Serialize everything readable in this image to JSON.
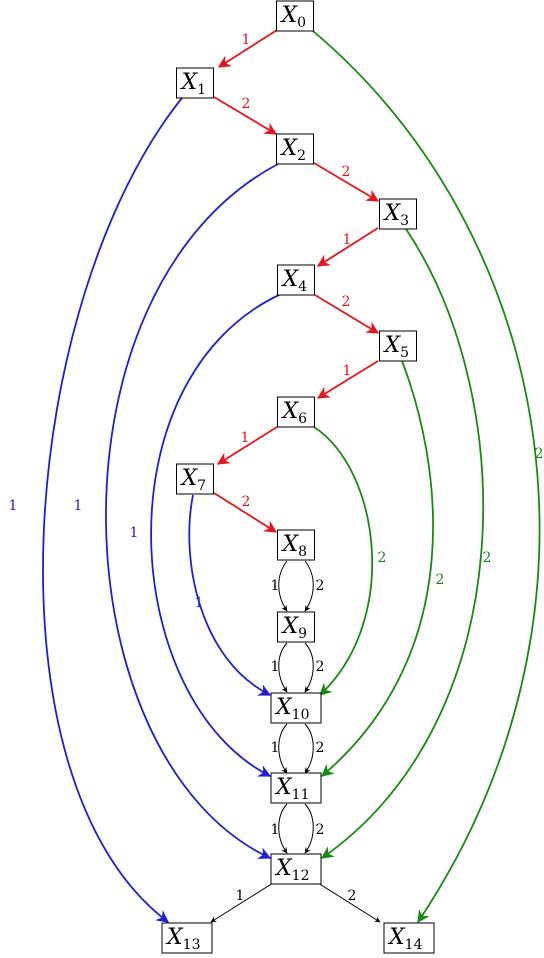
{
  "colors": {
    "red": "#e8141c",
    "blue": "#1f1fd6",
    "green": "#1a8a12",
    "black": "#000000"
  },
  "nodes": [
    {
      "id": "X0",
      "var": "X",
      "sub": "0"
    },
    {
      "id": "X1",
      "var": "X",
      "sub": "1"
    },
    {
      "id": "X2",
      "var": "X",
      "sub": "2"
    },
    {
      "id": "X3",
      "var": "X",
      "sub": "3"
    },
    {
      "id": "X4",
      "var": "X",
      "sub": "4"
    },
    {
      "id": "X5",
      "var": "X",
      "sub": "5"
    },
    {
      "id": "X6",
      "var": "X",
      "sub": "6"
    },
    {
      "id": "X7",
      "var": "X",
      "sub": "7"
    },
    {
      "id": "X8",
      "var": "X",
      "sub": "8"
    },
    {
      "id": "X9",
      "var": "X",
      "sub": "9"
    },
    {
      "id": "X10",
      "var": "X",
      "sub": "10"
    },
    {
      "id": "X11",
      "var": "X",
      "sub": "11"
    },
    {
      "id": "X12",
      "var": "X",
      "sub": "12"
    },
    {
      "id": "X13",
      "var": "X",
      "sub": "13"
    },
    {
      "id": "X14",
      "var": "X",
      "sub": "14"
    }
  ],
  "edges": [
    {
      "from": "X0",
      "to": "X1",
      "label": "1",
      "color": "red"
    },
    {
      "from": "X1",
      "to": "X2",
      "label": "2",
      "color": "red"
    },
    {
      "from": "X2",
      "to": "X3",
      "label": "2",
      "color": "red"
    },
    {
      "from": "X3",
      "to": "X4",
      "label": "1",
      "color": "red"
    },
    {
      "from": "X4",
      "to": "X5",
      "label": "2",
      "color": "red"
    },
    {
      "from": "X5",
      "to": "X6",
      "label": "1",
      "color": "red"
    },
    {
      "from": "X6",
      "to": "X7",
      "label": "1",
      "color": "red"
    },
    {
      "from": "X7",
      "to": "X8",
      "label": "2",
      "color": "red"
    },
    {
      "from": "X8",
      "to": "X9",
      "label": "1",
      "color": "black"
    },
    {
      "from": "X8",
      "to": "X9",
      "label": "2",
      "color": "black"
    },
    {
      "from": "X9",
      "to": "X10",
      "label": "1",
      "color": "black"
    },
    {
      "from": "X9",
      "to": "X10",
      "label": "2",
      "color": "black"
    },
    {
      "from": "X10",
      "to": "X11",
      "label": "1",
      "color": "black"
    },
    {
      "from": "X10",
      "to": "X11",
      "label": "2",
      "color": "black"
    },
    {
      "from": "X11",
      "to": "X12",
      "label": "1",
      "color": "black"
    },
    {
      "from": "X11",
      "to": "X12",
      "label": "2",
      "color": "black"
    },
    {
      "from": "X12",
      "to": "X13",
      "label": "1",
      "color": "black"
    },
    {
      "from": "X12",
      "to": "X14",
      "label": "2",
      "color": "black"
    },
    {
      "from": "X1",
      "to": "X13",
      "label": "1",
      "color": "blue"
    },
    {
      "from": "X2",
      "to": "X12",
      "label": "1",
      "color": "blue"
    },
    {
      "from": "X4",
      "to": "X11",
      "label": "1",
      "color": "blue"
    },
    {
      "from": "X7",
      "to": "X10",
      "label": "1",
      "color": "blue"
    },
    {
      "from": "X6",
      "to": "X10",
      "label": "2",
      "color": "green"
    },
    {
      "from": "X5",
      "to": "X11",
      "label": "2",
      "color": "green"
    },
    {
      "from": "X3",
      "to": "X12",
      "label": "2",
      "color": "green"
    },
    {
      "from": "X0",
      "to": "X14",
      "label": "2",
      "color": "green"
    }
  ]
}
